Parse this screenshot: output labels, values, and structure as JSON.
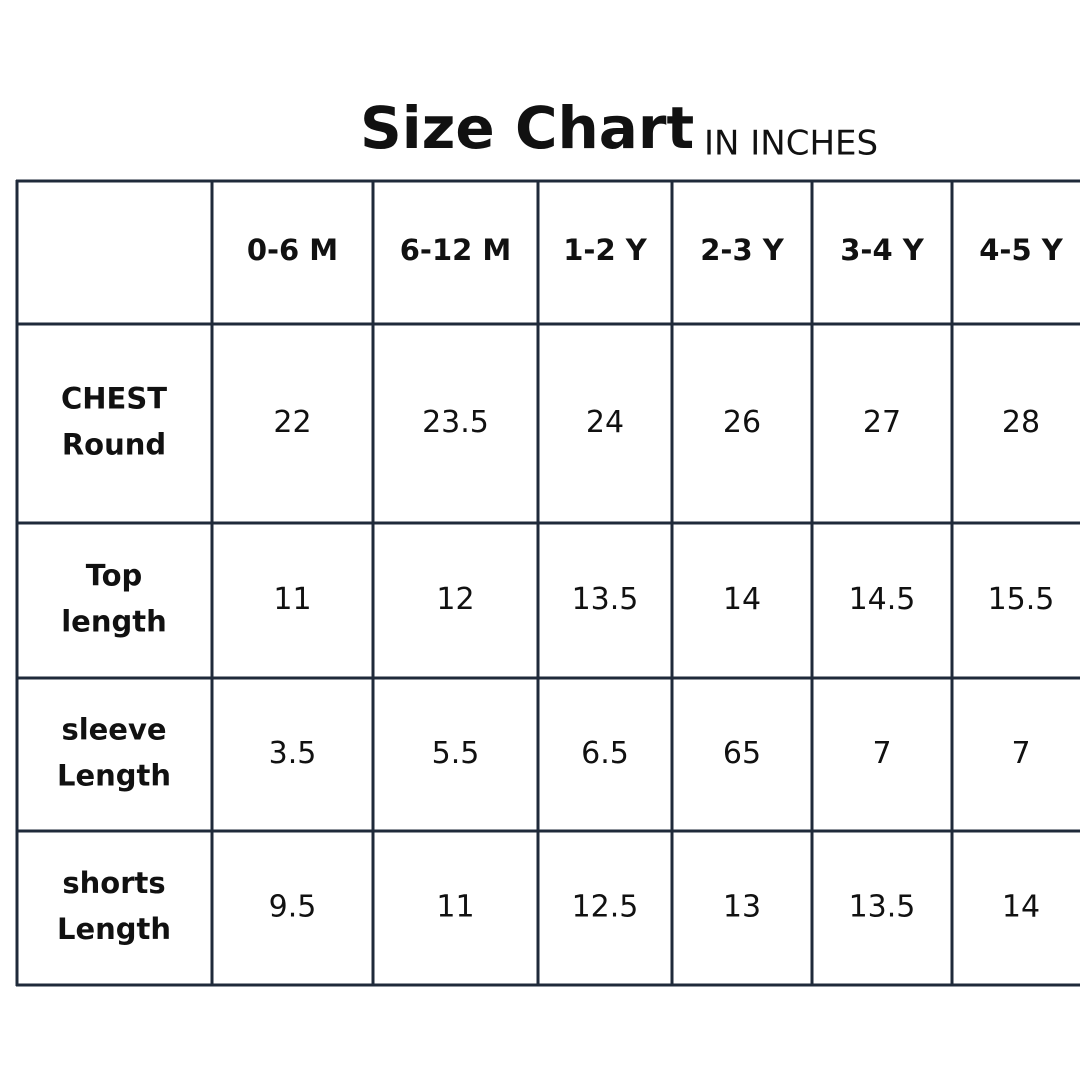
{
  "header": {
    "title": "Size Chart",
    "subtitle": "IN INCHES"
  },
  "table": {
    "columns": [
      "0-6 M",
      "6-12 M",
      "1-2 Y",
      "2-3 Y",
      "3-4 Y",
      "4-5 Y"
    ],
    "rows": [
      {
        "label": [
          "CHEST",
          "Round"
        ],
        "values": [
          22,
          23.5,
          24,
          26,
          27,
          28
        ]
      },
      {
        "label": [
          "Top",
          "length"
        ],
        "values": [
          11,
          12,
          13.5,
          14,
          14.5,
          15.5
        ]
      },
      {
        "label": [
          "sleeve",
          "Length"
        ],
        "values": [
          3.5,
          5.5,
          6.5,
          65,
          7,
          7
        ]
      },
      {
        "label": [
          "shorts",
          "Length"
        ],
        "values": [
          9.5,
          11,
          12.5,
          13,
          13.5,
          14
        ]
      }
    ]
  }
}
